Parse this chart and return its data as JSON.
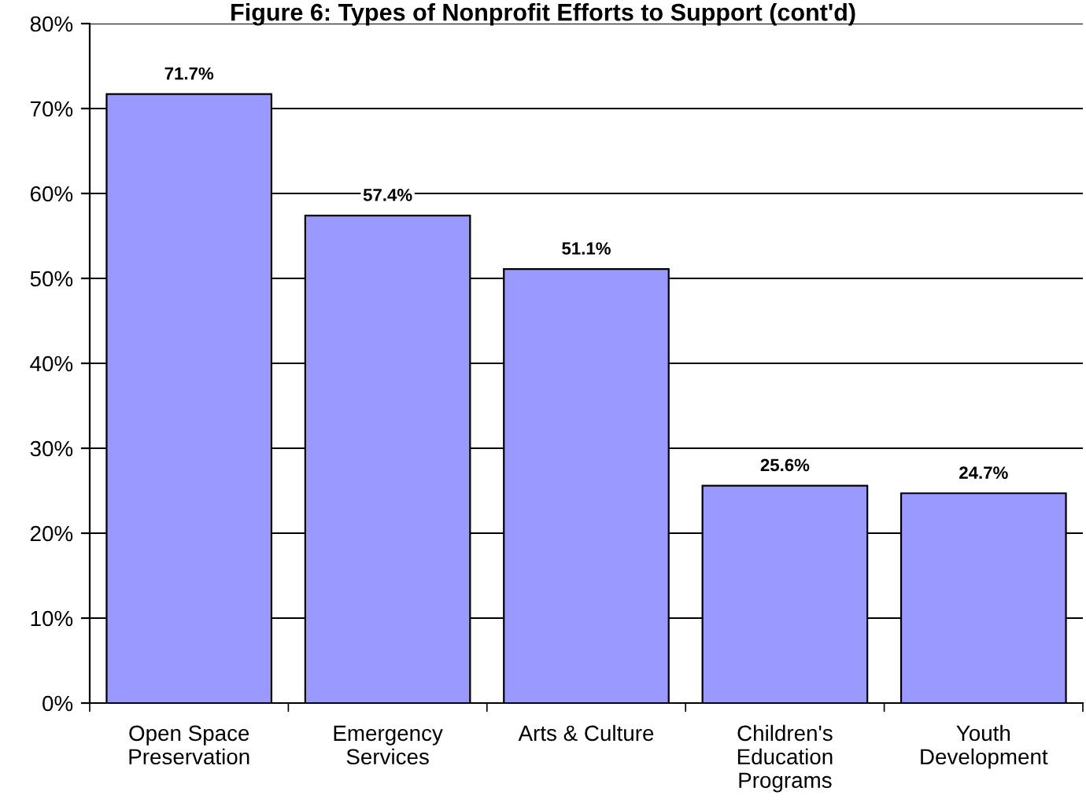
{
  "chart_data": {
    "type": "bar",
    "title": "Figure 6: Types of Nonprofit Efforts to Support (cont'd)",
    "categories": [
      "Open Space\nPreservation",
      "Emergency\nServices",
      "Arts & Culture",
      "Children's\nEducation\nPrograms",
      "Youth\nDevelopment"
    ],
    "values": [
      71.7,
      57.4,
      51.1,
      25.6,
      24.7
    ],
    "value_labels": [
      "71.7%",
      "57.4%",
      "51.1%",
      "25.6%",
      "24.7%"
    ],
    "color": "#9999ff",
    "ylim": [
      0,
      80
    ],
    "yticks": [
      {
        "value": 0,
        "label": "0%"
      },
      {
        "value": 10,
        "label": "10%"
      },
      {
        "value": 20,
        "label": "20%"
      },
      {
        "value": 30,
        "label": "30%"
      },
      {
        "value": 40,
        "label": "40%"
      },
      {
        "value": 50,
        "label": "50%"
      },
      {
        "value": 60,
        "label": "60%"
      },
      {
        "value": 70,
        "label": "70%"
      },
      {
        "value": 80,
        "label": "80%"
      }
    ],
    "grid": "y"
  }
}
